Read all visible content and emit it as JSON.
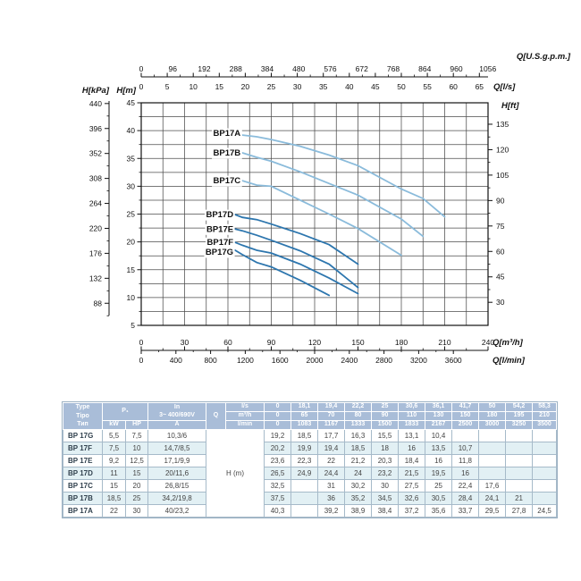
{
  "chart_data": {
    "type": "line",
    "title": "",
    "xlabel_primary": "Q[m³/h]",
    "ylabel_primary": "H[m]",
    "xlim_m3h": [
      0,
      240
    ],
    "ylim_m": [
      5,
      45
    ],
    "grid": {
      "on": true,
      "x_step_m3h": 15,
      "y_step_m": 2.5
    },
    "colors": {
      "light": "#8abbdb",
      "dark": "#2d76ae",
      "grid": "#4c4c4c",
      "frame": "#111111",
      "text": "#111111"
    },
    "axes": {
      "top_gpm": {
        "title": "Q[U.S.g.p.m.]",
        "ticks": [
          0,
          96,
          192,
          288,
          384,
          480,
          576,
          672,
          768,
          864,
          960,
          1056
        ],
        "m3h_per_unit": 0.227125
      },
      "top_ls": {
        "title": "Q[l/s]",
        "ticks": [
          0,
          5,
          10,
          15,
          20,
          25,
          30,
          35,
          40,
          45,
          50,
          55,
          60,
          65
        ],
        "m3h_per_unit": 3.6
      },
      "left_kpa": {
        "title": "H[kPa]",
        "ticks": [
          440,
          396,
          352,
          308,
          264,
          220,
          176,
          132,
          88
        ],
        "m_per_unit": 0.101972
      },
      "left_m": {
        "title": "H[m]",
        "ticks": [
          45,
          40,
          35,
          30,
          25,
          20,
          15,
          10,
          5
        ]
      },
      "right_ft": {
        "title": "H[ft]",
        "ticks": [
          135,
          120,
          105,
          90,
          75,
          60,
          45,
          30
        ],
        "m_per_unit": 0.3048
      },
      "bottom_m3h": {
        "title": "Q[m³/h]",
        "ticks": [
          0,
          30,
          60,
          90,
          120,
          150,
          180,
          210,
          240
        ]
      },
      "bottom_lmin": {
        "title": "Q[l/min]",
        "ticks": [
          0,
          400,
          800,
          1200,
          1600,
          2000,
          2400,
          2800,
          3200,
          3600
        ],
        "m3h_per_unit": 0.06
      }
    },
    "series": [
      {
        "name": "BP17A",
        "color": "light",
        "label_dy": -2,
        "points": [
          [
            70,
            39.2
          ],
          [
            80,
            38.9
          ],
          [
            90,
            38.4
          ],
          [
            110,
            37.2
          ],
          [
            130,
            35.6
          ],
          [
            150,
            33.7
          ],
          [
            180,
            29.5
          ],
          [
            195,
            27.8
          ],
          [
            210,
            24.5
          ]
        ]
      },
      {
        "name": "BP17B",
        "color": "light",
        "label_dy": 0,
        "points": [
          [
            70,
            36
          ],
          [
            80,
            35.2
          ],
          [
            90,
            34.5
          ],
          [
            110,
            32.6
          ],
          [
            130,
            30.5
          ],
          [
            150,
            28.4
          ],
          [
            180,
            24.1
          ],
          [
            195,
            21
          ]
        ]
      },
      {
        "name": "BP17C",
        "color": "light",
        "label_dy": 0,
        "points": [
          [
            70,
            31
          ],
          [
            80,
            30.2
          ],
          [
            90,
            30
          ],
          [
            110,
            27.5
          ],
          [
            130,
            25
          ],
          [
            150,
            22.4
          ],
          [
            180,
            17.6
          ]
        ]
      },
      {
        "name": "BP17D",
        "color": "dark",
        "label_dy": 0,
        "points": [
          [
            65,
            24.9
          ],
          [
            70,
            24.4
          ],
          [
            80,
            24
          ],
          [
            90,
            23.2
          ],
          [
            110,
            21.5
          ],
          [
            130,
            19.5
          ],
          [
            150,
            16
          ]
        ]
      },
      {
        "name": "BP17E",
        "color": "dark",
        "label_dy": 0,
        "points": [
          [
            65,
            22.3
          ],
          [
            70,
            22
          ],
          [
            80,
            21.2
          ],
          [
            90,
            20.3
          ],
          [
            110,
            18.4
          ],
          [
            130,
            16
          ],
          [
            150,
            11.8
          ]
        ]
      },
      {
        "name": "BP17F",
        "color": "dark",
        "label_dy": 0,
        "points": [
          [
            65,
            19.9
          ],
          [
            70,
            19.4
          ],
          [
            80,
            18.5
          ],
          [
            90,
            18
          ],
          [
            110,
            16
          ],
          [
            130,
            13.5
          ],
          [
            150,
            10.7
          ]
        ]
      },
      {
        "name": "BP17G",
        "color": "dark",
        "label_dy": 2,
        "points": [
          [
            65,
            18.5
          ],
          [
            70,
            17.7
          ],
          [
            80,
            16.3
          ],
          [
            90,
            15.5
          ],
          [
            110,
            13.1
          ],
          [
            130,
            10.4
          ]
        ]
      }
    ]
  },
  "table": {
    "header": {
      "type_lines": [
        "Type",
        "Tipo",
        "Тип"
      ],
      "p1": "P₁",
      "kw": "kW",
      "hp": "HP",
      "in_lines": [
        "In",
        "3~ 400/690V"
      ],
      "amp": "A",
      "q": "Q",
      "unit_ls": "l/s",
      "unit_m3h": "m³/h",
      "unit_lmin": "l/min",
      "q_ls": [
        "0",
        "18,1",
        "19,4",
        "22,2",
        "25",
        "30,6",
        "36,1",
        "41,7",
        "50",
        "54,2",
        "58,3"
      ],
      "q_m3h": [
        "0",
        "65",
        "70",
        "80",
        "90",
        "110",
        "130",
        "150",
        "180",
        "195",
        "210"
      ],
      "q_lmin": [
        "0",
        "1083",
        "1167",
        "1333",
        "1500",
        "1833",
        "2167",
        "2500",
        "3000",
        "3250",
        "3500"
      ]
    },
    "h_label": "H (m)",
    "rows": [
      {
        "type": "BP 17G",
        "kw": "5,5",
        "hp": "7,5",
        "in": "10,3/6",
        "h": [
          "19,2",
          "18,5",
          "17,7",
          "16,3",
          "15,5",
          "13,1",
          "10,4",
          "",
          "",
          "",
          ""
        ]
      },
      {
        "type": "BP 17F",
        "kw": "7,5",
        "hp": "10",
        "in": "14,7/8,5",
        "h": [
          "20,2",
          "19,9",
          "19,4",
          "18,5",
          "18",
          "16",
          "13,5",
          "10,7",
          "",
          "",
          ""
        ]
      },
      {
        "type": "BP 17E",
        "kw": "9,2",
        "hp": "12,5",
        "in": "17,1/9,9",
        "h": [
          "23,6",
          "22,3",
          "22",
          "21,2",
          "20,3",
          "18,4",
          "16",
          "11,8",
          "",
          "",
          ""
        ]
      },
      {
        "type": "BP 17D",
        "kw": "11",
        "hp": "15",
        "in": "20/11,6",
        "h": [
          "26,5",
          "24,9",
          "24,4",
          "24",
          "23,2",
          "21,5",
          "19,5",
          "16",
          "",
          "",
          ""
        ]
      },
      {
        "type": "BP 17C",
        "kw": "15",
        "hp": "20",
        "in": "26,8/15",
        "h": [
          "32,5",
          "",
          "31",
          "30,2",
          "30",
          "27,5",
          "25",
          "22,4",
          "17,6",
          "",
          ""
        ]
      },
      {
        "type": "BP 17B",
        "kw": "18,5",
        "hp": "25",
        "in": "34,2/19,8",
        "h": [
          "37,5",
          "",
          "36",
          "35,2",
          "34,5",
          "32,6",
          "30,5",
          "28,4",
          "24,1",
          "21",
          ""
        ]
      },
      {
        "type": "BP 17A",
        "kw": "22",
        "hp": "30",
        "in": "40/23,2",
        "h": [
          "40,3",
          "",
          "39,2",
          "38,9",
          "38,4",
          "37,2",
          "35,6",
          "33,7",
          "29,5",
          "27,8",
          "24,5"
        ]
      }
    ],
    "colors": {
      "header_bg": "#a9bdd8",
      "stripe_bg": "#e2f0f4",
      "border": "#a6bac9"
    }
  }
}
